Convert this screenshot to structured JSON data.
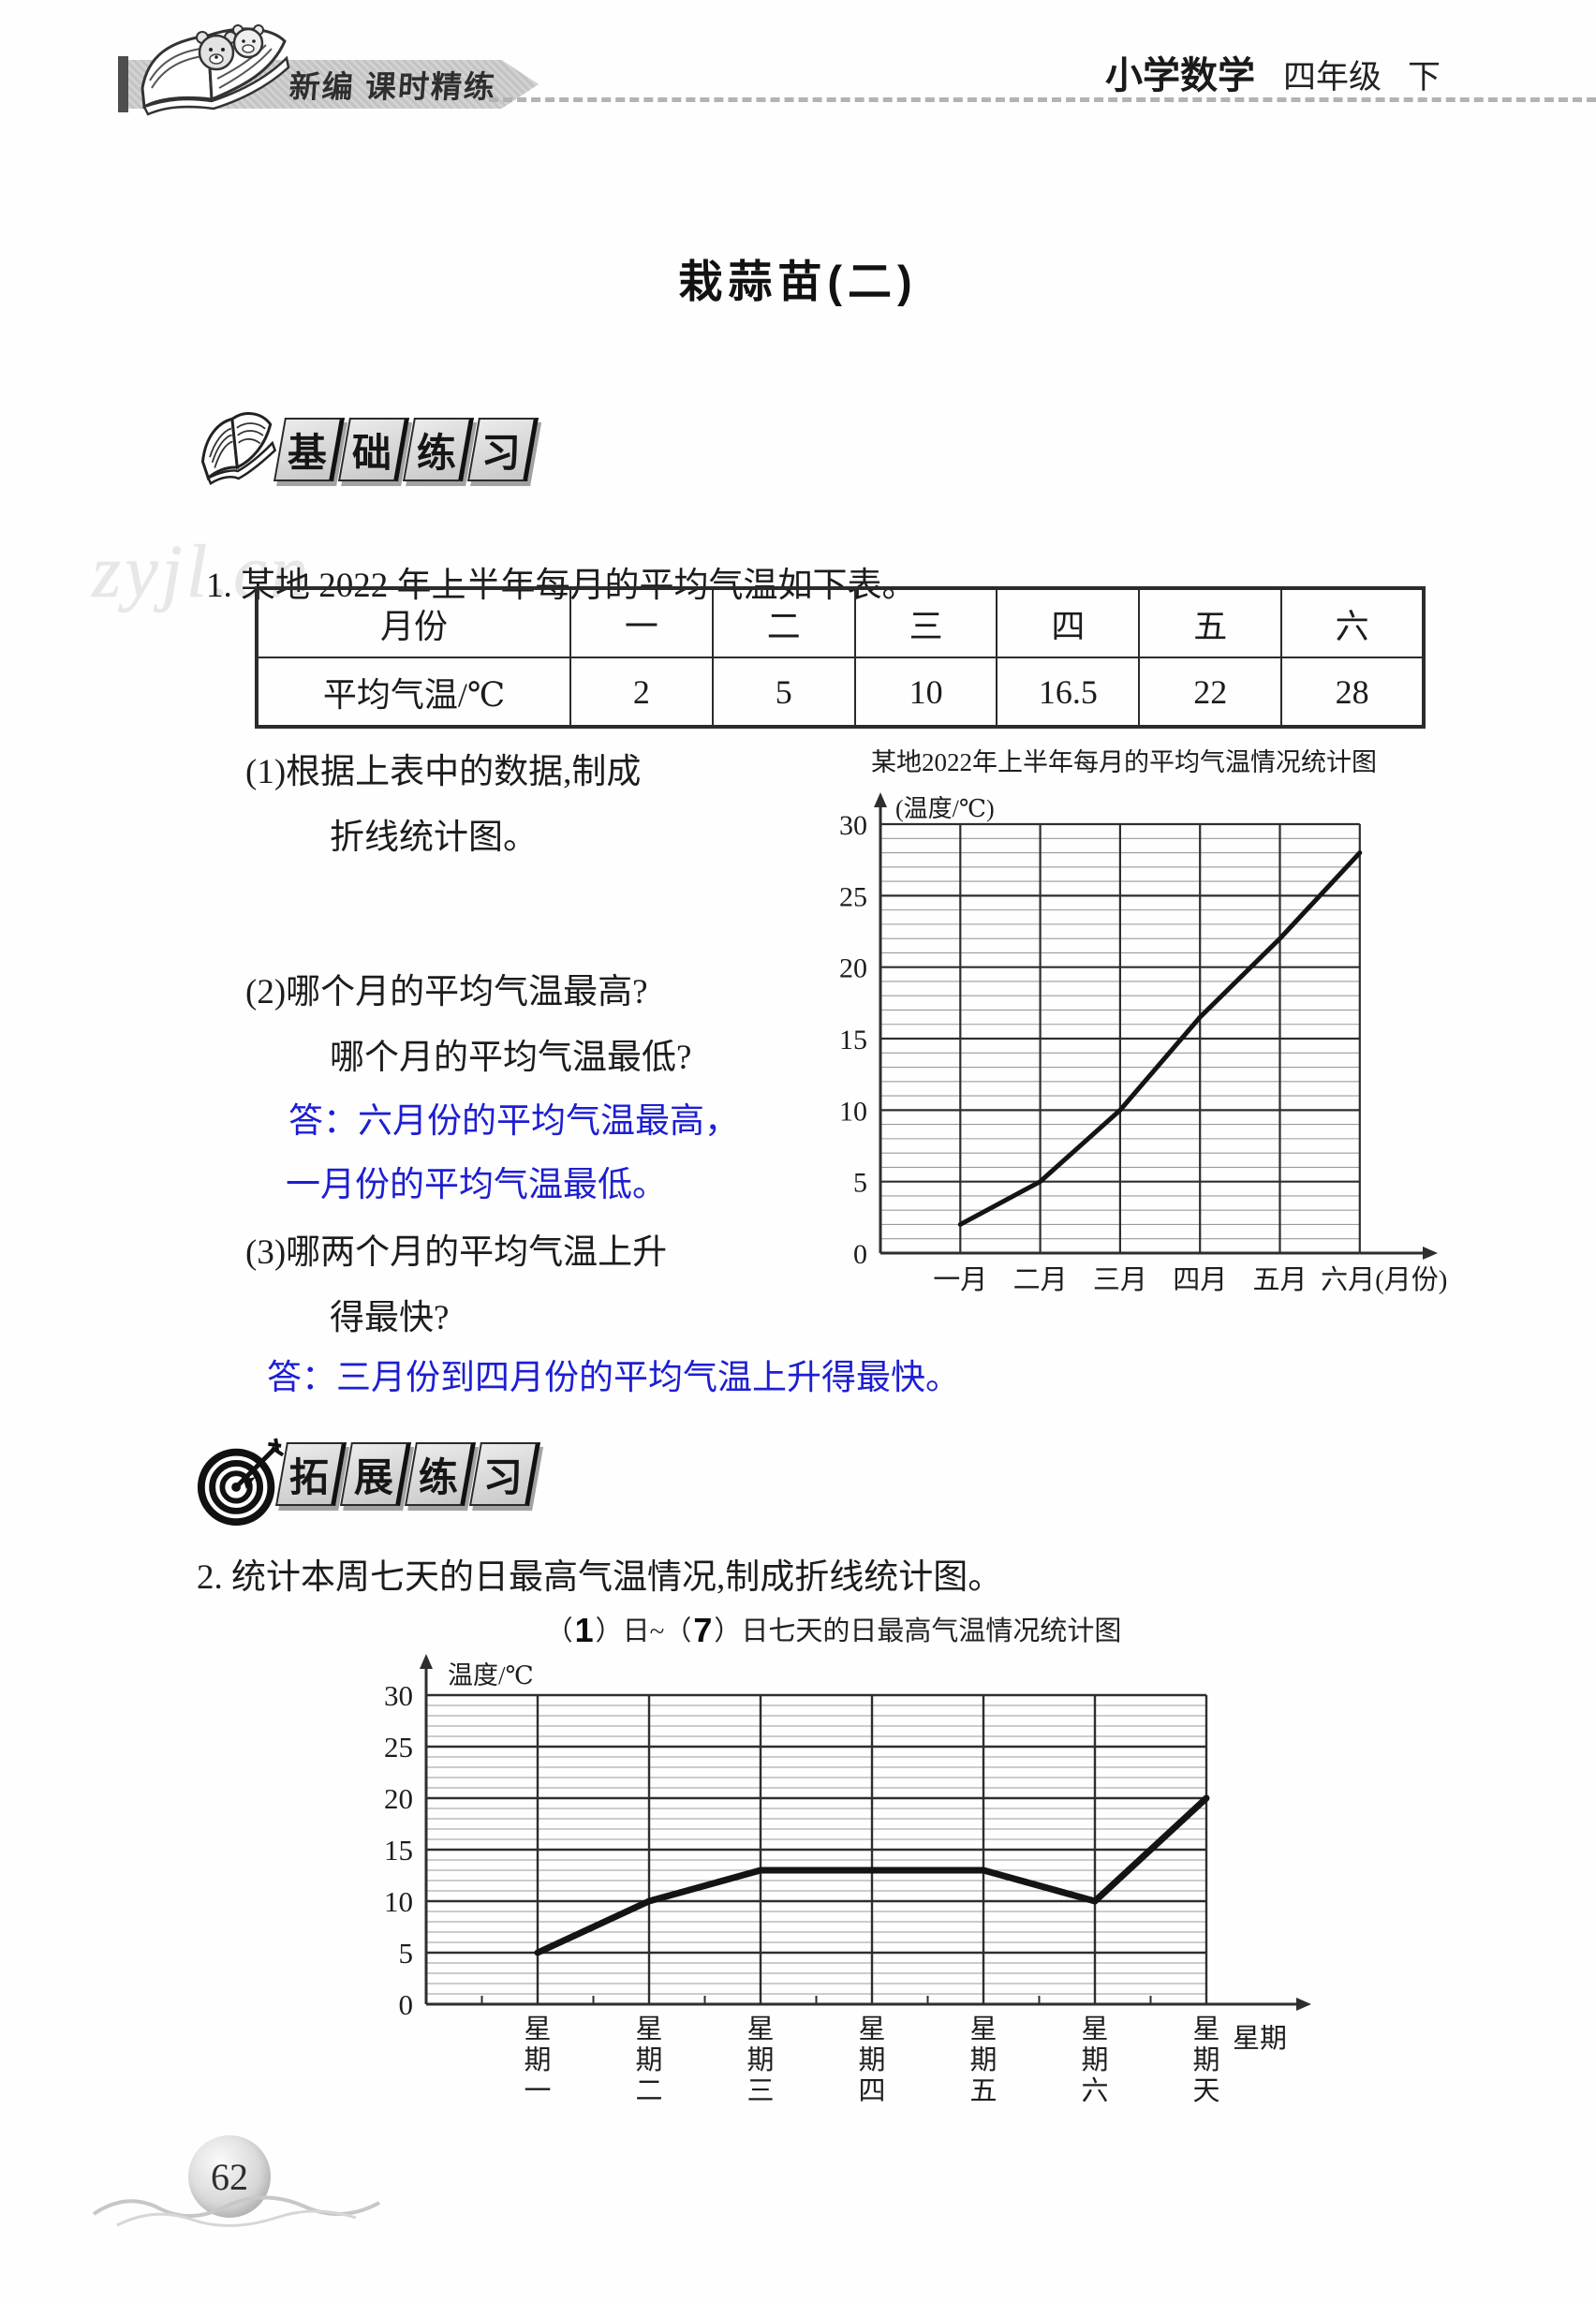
{
  "header": {
    "brand": "新编 课时精练",
    "subject": "小学数学",
    "grade": "四年级",
    "volume": "下"
  },
  "page": {
    "title": "栽蒜苗(二)",
    "number": "62",
    "watermark": "zyjl.cn"
  },
  "sections": {
    "basic": {
      "chars": [
        "基",
        "础",
        "练",
        "习"
      ]
    },
    "extend": {
      "chars": [
        "拓",
        "展",
        "练",
        "习"
      ]
    }
  },
  "q1": {
    "number": "1.",
    "text": "某地 2022 年上半年每月的平均气温如下表。",
    "table": {
      "header_label": "月份",
      "row_label": "平均气温/℃",
      "months": [
        "一",
        "二",
        "三",
        "四",
        "五",
        "六"
      ],
      "temps": [
        "2",
        "5",
        "10",
        "16.5",
        "22",
        "28"
      ]
    },
    "sub1_line1": "(1)根据上表中的数据,制成",
    "sub1_line2": "折线统计图。",
    "sub2_line1": "(2)哪个月的平均气温最高?",
    "sub2_line2": "哪个月的平均气温最低?",
    "ans2_line1": "答：六月份的平均气温最高，",
    "ans2_line2": "一月份的平均气温最低。",
    "sub3_line1": "(3)哪两个月的平均气温上升",
    "sub3_line2": "得最快?",
    "ans3": "答：三月份到四月份的平均气温上升得最快。"
  },
  "q2": {
    "number": "2.",
    "text": "统计本周七天的日最高气温情况,制成折线统计图。"
  },
  "chart_data": [
    {
      "type": "line",
      "title": "某地2022年上半年每月的平均气温情况统计图",
      "ylabel": "(温度/℃)",
      "xlabel_suffix": "(月份)",
      "categories": [
        "一月",
        "二月",
        "三月",
        "四月",
        "五月",
        "六月"
      ],
      "values": [
        2,
        5,
        10,
        16.5,
        22,
        28
      ],
      "yticks": [
        0,
        5,
        10,
        15,
        20,
        25,
        30
      ],
      "ylim": [
        0,
        30
      ],
      "grid": "minor every 1, major every 5",
      "legend": "none"
    },
    {
      "type": "line",
      "title": "（1）日~（7）日七天的日最高气温情况统计图",
      "title_parts": [
        "（",
        "1",
        "）日~（",
        "7",
        "）日七天的日最高气温情况统计图"
      ],
      "ylabel": "温度/℃",
      "xlabel": "星期",
      "categories": [
        "星期一",
        "星期二",
        "星期三",
        "星期四",
        "星期五",
        "星期六",
        "星期天"
      ],
      "values": [
        5,
        10,
        13,
        13,
        13,
        10,
        20
      ],
      "yticks": [
        0,
        5,
        10,
        15,
        20,
        25,
        30
      ],
      "ylim": [
        0,
        30
      ],
      "grid": "minor every 1, major every 5",
      "legend": "none"
    }
  ],
  "colors": {
    "answer_blue": "#1d1ed2",
    "grid_minor": "#9a9a9a",
    "grid_major": "#2e2e2e",
    "data_line": "#141414"
  }
}
